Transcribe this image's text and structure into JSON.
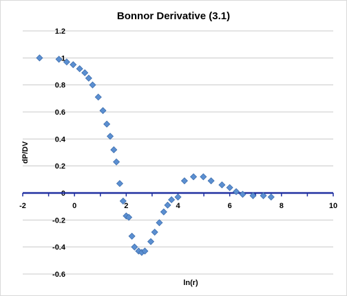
{
  "chart_data": {
    "type": "scatter",
    "title": "Bonnor Derivative (3.1)",
    "xlabel": "ln(r)",
    "ylabel": "dP/DV",
    "xlim": [
      -2,
      10
    ],
    "ylim": [
      -0.6,
      1.2
    ],
    "x_ticks": [
      "-2",
      "0",
      "2",
      "4",
      "6",
      "8",
      "10"
    ],
    "y_ticks": [
      "-0.6",
      "-0.4",
      "-0.2",
      "0",
      "0.2",
      "0.4",
      "0.6",
      "0.8",
      "1",
      "1.2"
    ],
    "grid": true,
    "legend": "none",
    "colors": {
      "marker": "#5b8fd1",
      "marker_edge": "#3f6fae",
      "zero_axis": "#1f2fa0",
      "grid": "#c8c8c8"
    },
    "series": [
      {
        "x": [
          -1.35,
          -0.6,
          -0.3,
          -0.05,
          0.2,
          0.4,
          0.55,
          0.7,
          0.92,
          1.1,
          1.25,
          1.38,
          1.52,
          1.62,
          1.75,
          1.88,
          2.0,
          2.1,
          2.22,
          2.32,
          2.48,
          2.6,
          2.72,
          2.95,
          3.1,
          3.28,
          3.45,
          3.6,
          3.75,
          4.0,
          4.25,
          4.6,
          4.98,
          5.28,
          5.7,
          6.0,
          6.25,
          6.5,
          6.9,
          7.3,
          7.6
        ],
        "y": [
          1.0,
          0.99,
          0.97,
          0.95,
          0.92,
          0.89,
          0.85,
          0.8,
          0.71,
          0.61,
          0.51,
          0.42,
          0.32,
          0.23,
          0.07,
          -0.06,
          -0.17,
          -0.18,
          -0.32,
          -0.4,
          -0.43,
          -0.44,
          -0.43,
          -0.36,
          -0.29,
          -0.22,
          -0.14,
          -0.09,
          -0.05,
          -0.03,
          0.09,
          0.12,
          0.12,
          0.09,
          0.06,
          0.04,
          0.01,
          -0.01,
          -0.02,
          -0.02,
          -0.03
        ]
      }
    ]
  }
}
